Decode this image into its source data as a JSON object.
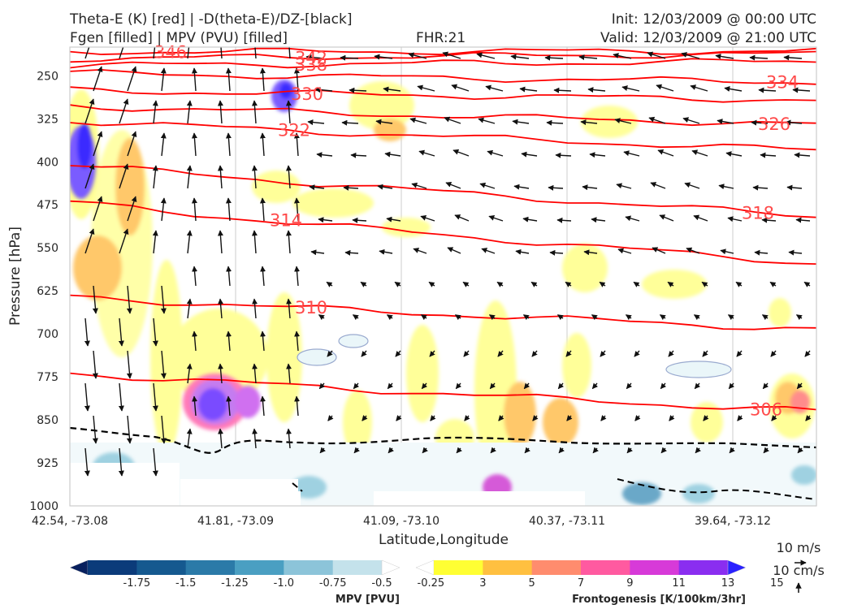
{
  "header": {
    "title_line1": "Theta-E (K) [red] | -D(theta-E)/DZ-[black]",
    "title_line2": "Fgen [filled] | MPV (PVU) [filled]",
    "fhr": "FHR:21",
    "init": "Init: 12/03/2009 @ 00:00 UTC",
    "valid": "Valid: 12/03/2009 @ 21:00 UTC"
  },
  "colors": {
    "theta_e": "#ff0000",
    "theta_e_label": "#ff4a4a",
    "arrows": "#111111",
    "mpv_outline": "#9aaacf",
    "dashed": "#000000"
  },
  "chart_data": {
    "type": "cross-section",
    "ylabel": "Pressure [hPa]",
    "xlabel": "Latitude,Longitude",
    "y_ticks": [
      "250",
      "325",
      "400",
      "475",
      "550",
      "625",
      "700",
      "775",
      "850",
      "925",
      "1000"
    ],
    "x_ticks": [
      "42.54, -73.08",
      "41.81, -73.09",
      "41.09, -73.10",
      "40.37, -73.11",
      "39.64, -73.12"
    ],
    "ylim": [
      1000,
      200
    ],
    "theta_e_isentropes": [
      {
        "value": 346,
        "label": "346",
        "left_p": 208,
        "right_p": 207
      },
      {
        "value": 342,
        "label": "342",
        "left_p": 220,
        "right_p": 212
      },
      {
        "value": 338,
        "label": "338",
        "left_p": 232,
        "right_p": 225
      },
      {
        "value": 334,
        "label": "334",
        "left_p": 245,
        "right_p": 261
      },
      {
        "value": 330,
        "label": "330",
        "left_p": 275,
        "right_p": 292
      },
      {
        "value": 326,
        "label": "326",
        "left_p": 302,
        "right_p": 335
      },
      {
        "value": 322,
        "label": "322",
        "left_p": 328,
        "right_p": 380
      },
      {
        "value": 318,
        "label": "318",
        "left_p": 404,
        "right_p": 495
      },
      {
        "value": 314,
        "label": "314",
        "left_p": 470,
        "right_p": 577
      },
      {
        "value": 310,
        "label": "310",
        "left_p": 635,
        "right_p": 692
      },
      {
        "value": 306,
        "label": "306",
        "left_p": 768,
        "right_p": 835
      }
    ],
    "theta_e_labels_shown": [
      "346",
      "342",
      "338",
      "334",
      "330",
      "326",
      "322",
      "318",
      "314",
      "310",
      "306"
    ],
    "mpv_colorbar": {
      "title": "MPV [PVU]",
      "levels": [
        "-1.75",
        "-1.5",
        "-1.25",
        "-1.0",
        "-0.75",
        "-0.5",
        "-0.25"
      ],
      "colors": [
        "#08205e",
        "#0b3b7a",
        "#15598f",
        "#2b7aa8",
        "#4a9fc2",
        "#8cc4d9",
        "#c4e2eb",
        "#ffffff"
      ]
    },
    "fgen_colorbar": {
      "title": "Frontogenesis [K/100km/3hr]",
      "levels": [
        "3",
        "5",
        "7",
        "9",
        "11",
        "13",
        "15"
      ],
      "colors": [
        "#ffffff",
        "#ffff33",
        "#ffc040",
        "#ff8c6e",
        "#ff5aa0",
        "#d73ad8",
        "#8a2ef0",
        "#2a22ff"
      ]
    },
    "quiver_key": {
      "label1": "10 m/s",
      "label2": "10 cm/s"
    }
  }
}
